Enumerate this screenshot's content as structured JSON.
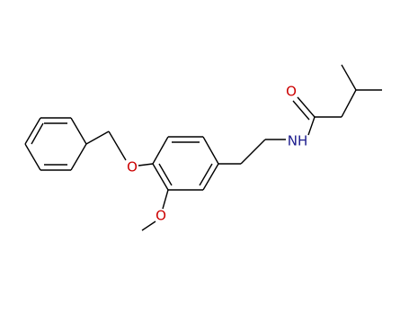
{
  "atoms": [
    {
      "label": "O"
    },
    {
      "label": "NH"
    },
    {
      "label": "O"
    },
    {
      "label": "O"
    }
  ]
}
